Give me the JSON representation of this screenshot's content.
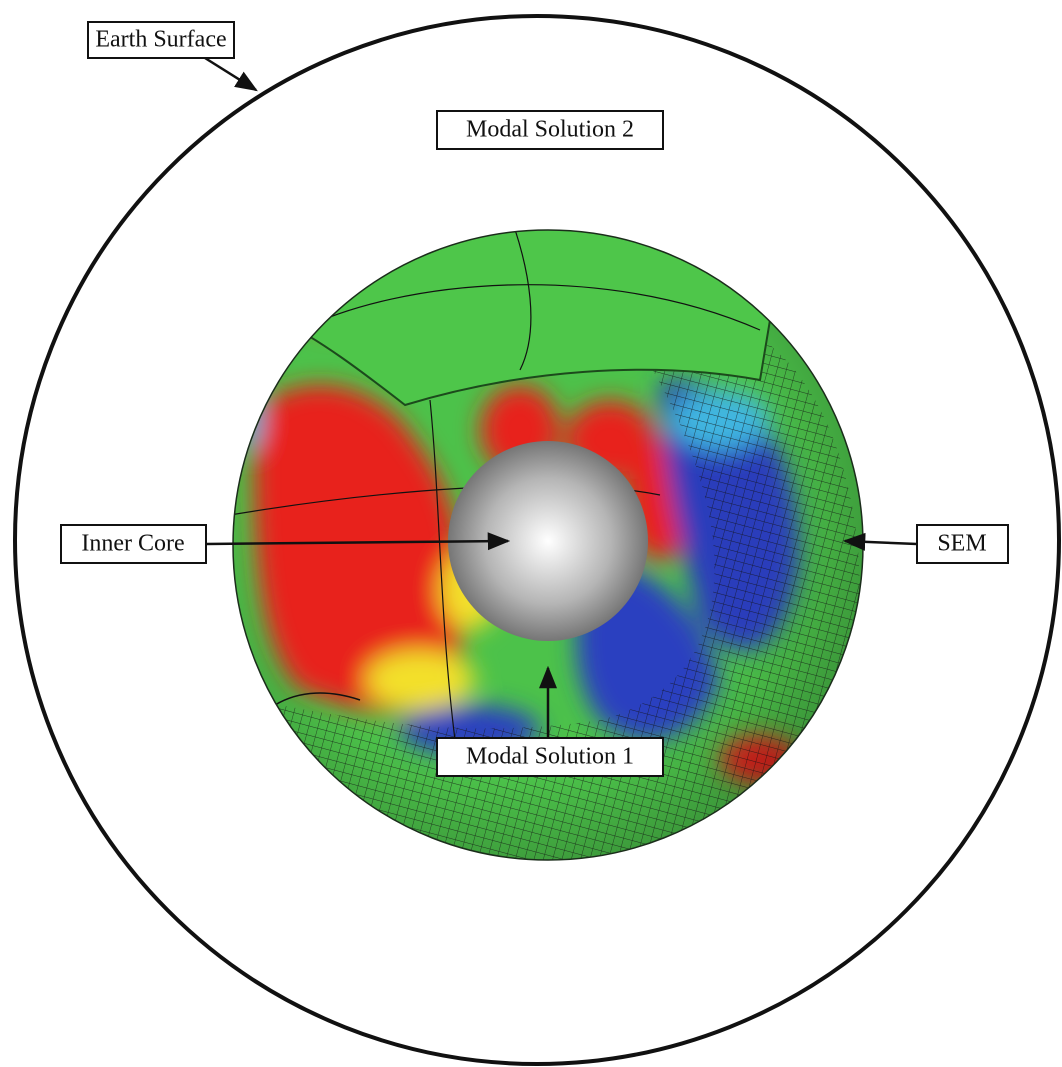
{
  "labels": [
    {
      "text": "Earth Surface"
    },
    {
      "text": "Modal Solution 2"
    },
    {
      "text": "Inner Core"
    },
    {
      "text": "SEM"
    },
    {
      "text": "Modal Solution 1"
    }
  ]
}
